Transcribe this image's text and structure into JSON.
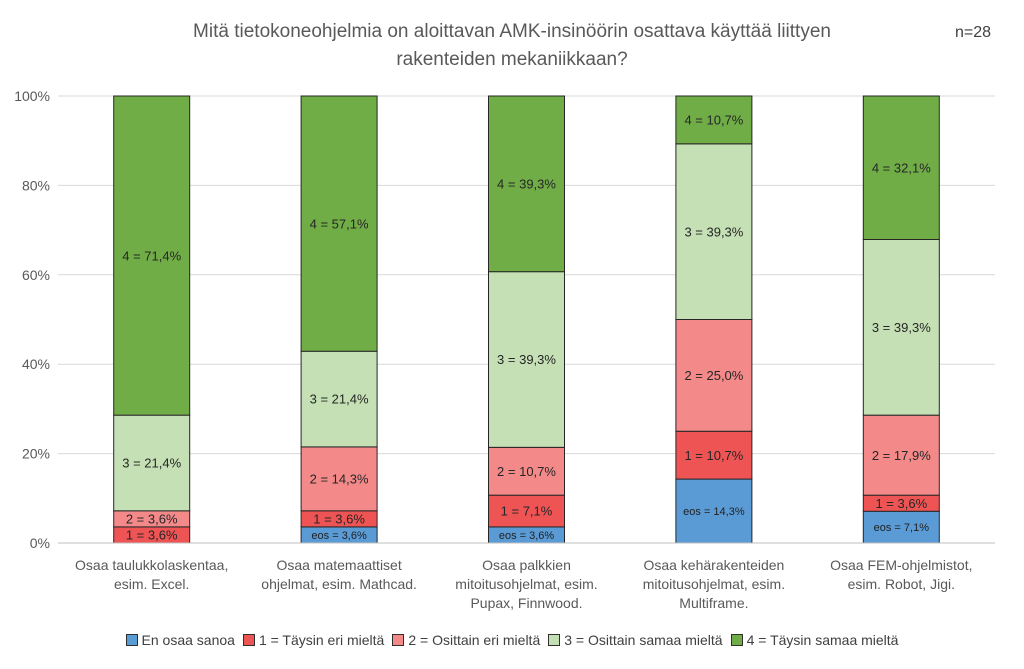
{
  "chart_data": {
    "type": "bar",
    "stacked": true,
    "title_lines": [
      "Mitä tietokoneohjelmia on aloittavan AMK-insinöörin osattava käyttää liittyen",
      "rakenteiden mekaniikkaan?"
    ],
    "sample_note": "n=28",
    "xlabel": "",
    "ylabel": "",
    "ylim": [
      0,
      100
    ],
    "yticks": [
      "0%",
      "20%",
      "40%",
      "60%",
      "80%",
      "100%"
    ],
    "grid": true,
    "legend_position": "bottom",
    "categories": [
      [
        "Osaa taulukkolaskentaa,",
        "esim. Excel."
      ],
      [
        "Osaa matemaattiset",
        "ohjelmat, esim. Mathcad."
      ],
      [
        "Osaa palkkien",
        "mitoitusohjelmat, esim.",
        "Pupax, Finnwood."
      ],
      [
        "Osaa kehärakenteiden",
        "mitoitusohjelmat, esim.",
        "Multiframe."
      ],
      [
        "Osaa FEM-ohjelmistot,",
        "esim. Robot, Jigi."
      ]
    ],
    "series": [
      {
        "name": "En osaa sanoa",
        "color": "#5b9bd5",
        "values": [
          0,
          3.6,
          3.6,
          14.3,
          7.1
        ],
        "labels": [
          "",
          "eos = 3,6%",
          "eos = 3,6%",
          "eos = 14,3%",
          "eos = 7,1%"
        ]
      },
      {
        "name": "1 = Täysin eri mieltä",
        "color": "#ef5455",
        "values": [
          3.6,
          3.6,
          7.1,
          10.7,
          3.6
        ],
        "labels": [
          "1 = 3,6%",
          "1 = 3,6%",
          "1 = 7,1%",
          "1 = 10,7%",
          "1 = 3,6%"
        ]
      },
      {
        "name": "2 = Osittain eri mieltä",
        "color": "#f4898a",
        "values": [
          3.6,
          14.3,
          10.7,
          25.0,
          17.9
        ],
        "labels": [
          "2 = 3,6%",
          "2 = 14,3%",
          "2 = 10,7%",
          "2 = 25,0%",
          "2 = 17,9%"
        ]
      },
      {
        "name": "3 = Osittain samaa mieltä",
        "color": "#c5e0b4",
        "values": [
          21.4,
          21.4,
          39.3,
          39.3,
          39.3
        ],
        "labels": [
          "3 = 21,4%",
          "3 = 21,4%",
          "3 = 39,3%",
          "3 = 39,3%",
          "3 = 39,3%"
        ]
      },
      {
        "name": "4 = Täysin samaa mieltä",
        "color": "#70ad47",
        "values": [
          71.4,
          57.1,
          39.3,
          10.7,
          32.1
        ],
        "labels": [
          "4 = 71,4%",
          "4 = 57,1%",
          "4 = 39,3%",
          "4 = 10,7%",
          "4 = 32,1%"
        ]
      }
    ]
  }
}
